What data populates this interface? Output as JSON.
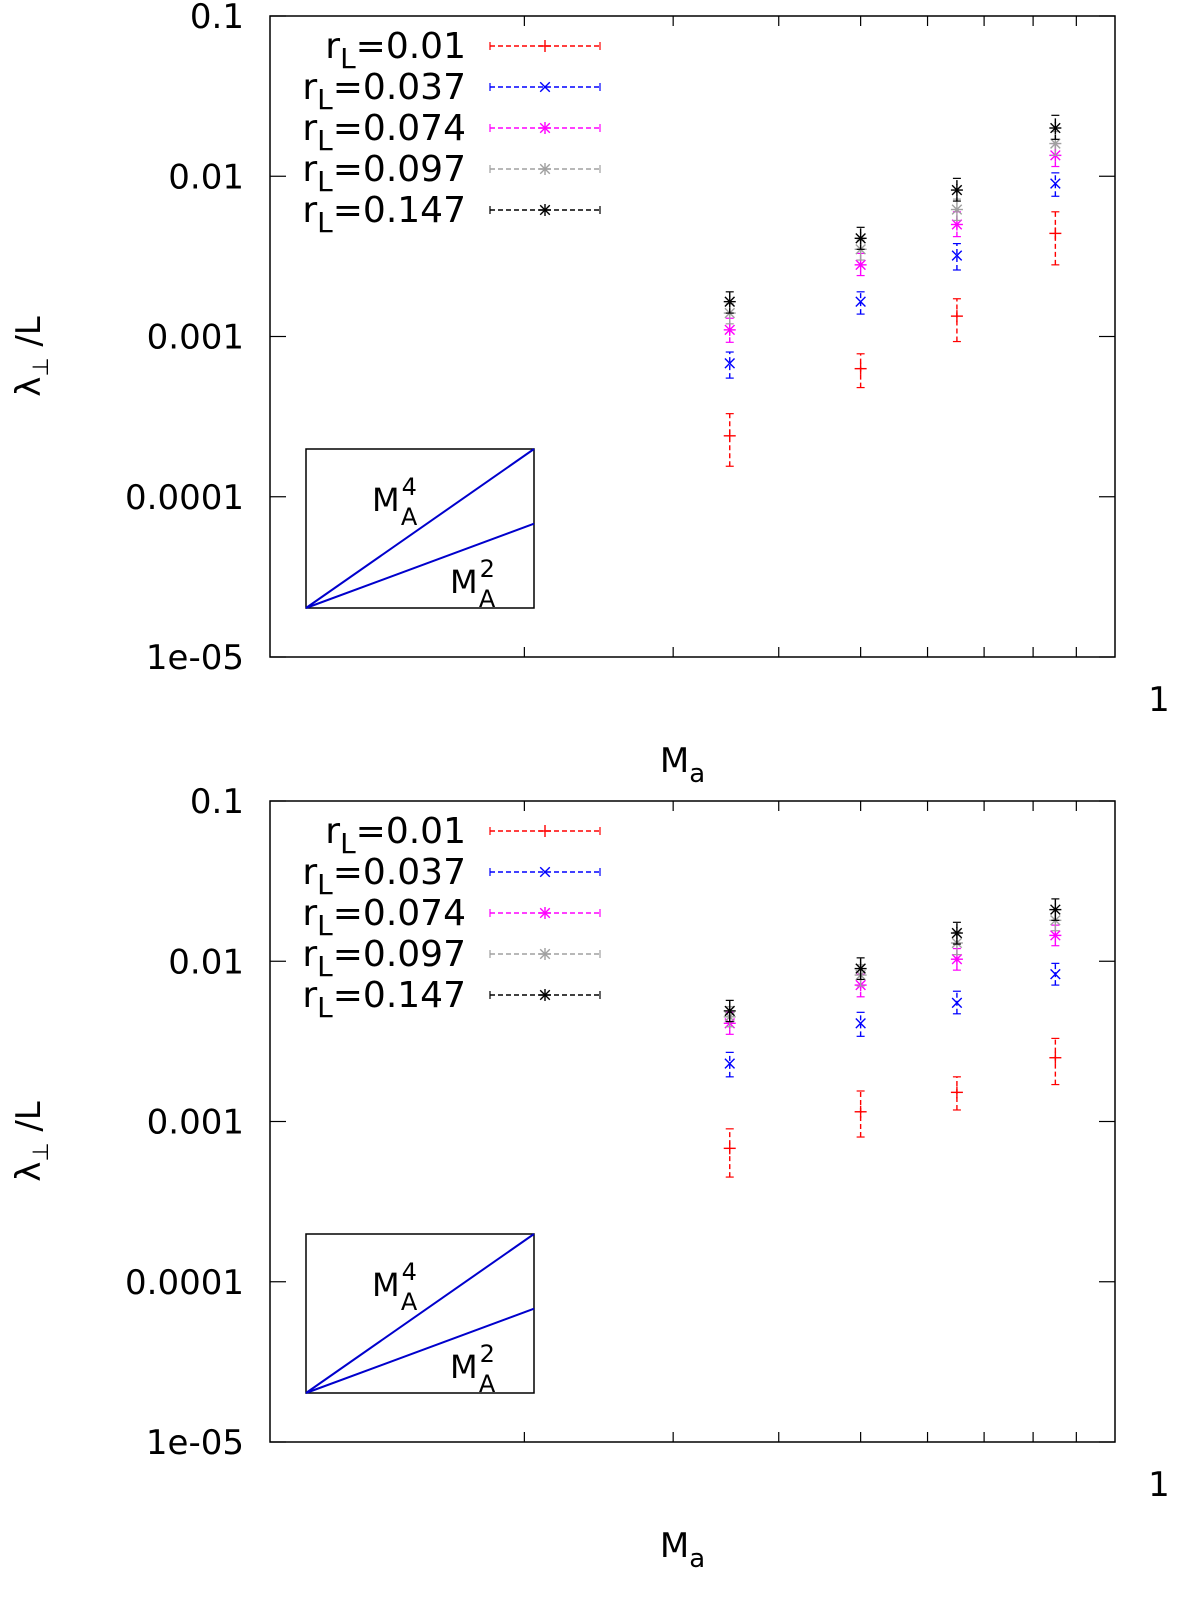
{
  "chart_data": [
    {
      "type": "scatter",
      "scale": "log-log",
      "xlabel": "M",
      "xlabel_sub": "a",
      "ylabel": "λ",
      "ylabel_sub": "⊥",
      "ylabel_suffix": "/L",
      "xlim": [
        0.1,
        1
      ],
      "ylim": [
        1e-05,
        0.1
      ],
      "x_tick_labels": [
        {
          "value": 1,
          "label": "1"
        }
      ],
      "y_tick_labels": [
        {
          "value": 0.1,
          "label": "0.1"
        },
        {
          "value": 0.01,
          "label": "0.01"
        },
        {
          "value": 0.001,
          "label": "0.001"
        },
        {
          "value": 0.0001,
          "label": "0.0001"
        },
        {
          "value": 1e-05,
          "label": "1e-05"
        }
      ],
      "inset": {
        "curves": [
          {
            "label": "M",
            "sub": "A",
            "sup": "4",
            "slope": 4
          },
          {
            "label": "M",
            "sub": "A",
            "sup": "2",
            "slope": 2
          }
        ]
      },
      "series": [
        {
          "name": "r",
          "name_sub": "L",
          "name_suffix": "=0.01",
          "color": "#ff0000",
          "marker": "plus",
          "x": [
            0.35,
            0.5,
            0.65,
            0.85
          ],
          "y": [
            0.00024,
            0.00063,
            0.00134,
            0.0044
          ],
          "err_low": [
            0.000155,
            0.00048,
            0.00093,
            0.0028
          ],
          "err_high": [
            0.00033,
            0.00078,
            0.00172,
            0.006
          ]
        },
        {
          "name": "r",
          "name_sub": "L",
          "name_suffix": "=0.037",
          "color": "#0000ff",
          "marker": "cross",
          "x": [
            0.35,
            0.5,
            0.65,
            0.85
          ],
          "y": [
            0.00068,
            0.00165,
            0.0032,
            0.009
          ],
          "err_low": [
            0.00055,
            0.00138,
            0.0026,
            0.0075
          ],
          "err_high": [
            0.0008,
            0.0019,
            0.0038,
            0.0105
          ]
        },
        {
          "name": "r",
          "name_sub": "L",
          "name_suffix": "=0.074",
          "color": "#ff00ff",
          "marker": "asterisk",
          "x": [
            0.35,
            0.5,
            0.65,
            0.85
          ],
          "y": [
            0.0011,
            0.0028,
            0.005,
            0.0135
          ],
          "err_low": [
            0.00092,
            0.0024,
            0.0042,
            0.0115
          ],
          "err_high": [
            0.0013,
            0.0033,
            0.006,
            0.016
          ]
        },
        {
          "name": "r",
          "name_sub": "L",
          "name_suffix": "=0.097",
          "color": "#a0a0a0",
          "marker": "asterisk",
          "x": [
            0.35,
            0.5,
            0.65,
            0.85
          ],
          "y": [
            0.0014,
            0.0035,
            0.0062,
            0.016
          ],
          "err_low": [
            0.0012,
            0.003,
            0.0053,
            0.0135
          ],
          "err_high": [
            0.0016,
            0.004,
            0.0072,
            0.019
          ]
        },
        {
          "name": "r",
          "name_sub": "L",
          "name_suffix": "=0.147",
          "color": "#000000",
          "marker": "asterisk",
          "x": [
            0.35,
            0.5,
            0.65,
            0.85
          ],
          "y": [
            0.00165,
            0.0041,
            0.0082,
            0.02
          ],
          "err_low": [
            0.0014,
            0.0035,
            0.007,
            0.017
          ],
          "err_high": [
            0.0019,
            0.0048,
            0.0097,
            0.024
          ]
        }
      ]
    },
    {
      "type": "scatter",
      "scale": "log-log",
      "xlabel": "M",
      "xlabel_sub": "a",
      "ylabel": "λ",
      "ylabel_sub": "⊥",
      "ylabel_suffix": "/L",
      "xlim": [
        0.1,
        1
      ],
      "ylim": [
        1e-05,
        0.1
      ],
      "x_tick_labels": [
        {
          "value": 1,
          "label": "1"
        }
      ],
      "y_tick_labels": [
        {
          "value": 0.1,
          "label": "0.1"
        },
        {
          "value": 0.01,
          "label": "0.01"
        },
        {
          "value": 0.001,
          "label": "0.001"
        },
        {
          "value": 0.0001,
          "label": "0.0001"
        },
        {
          "value": 1e-05,
          "label": "1e-05"
        }
      ],
      "inset": {
        "curves": [
          {
            "label": "M",
            "sub": "A",
            "sup": "4",
            "slope": 4
          },
          {
            "label": "M",
            "sub": "A",
            "sup": "2",
            "slope": 2
          }
        ]
      },
      "series": [
        {
          "name": "r",
          "name_sub": "L",
          "name_suffix": "=0.01",
          "color": "#ff0000",
          "marker": "plus",
          "x": [
            0.35,
            0.5,
            0.65,
            0.85
          ],
          "y": [
            0.00068,
            0.00115,
            0.00152,
            0.0025
          ],
          "err_low": [
            0.00045,
            0.0008,
            0.00118,
            0.0017
          ],
          "err_high": [
            0.0009,
            0.00155,
            0.0019,
            0.0033
          ]
        },
        {
          "name": "r",
          "name_sub": "L",
          "name_suffix": "=0.037",
          "color": "#0000ff",
          "marker": "cross",
          "x": [
            0.35,
            0.5,
            0.65,
            0.85
          ],
          "y": [
            0.0023,
            0.0041,
            0.0055,
            0.0083
          ],
          "err_low": [
            0.0019,
            0.0034,
            0.0047,
            0.0071
          ],
          "err_high": [
            0.0027,
            0.0048,
            0.0065,
            0.0097
          ]
        },
        {
          "name": "r",
          "name_sub": "L",
          "name_suffix": "=0.074",
          "color": "#ff00ff",
          "marker": "asterisk",
          "x": [
            0.35,
            0.5,
            0.65,
            0.85
          ],
          "y": [
            0.0041,
            0.0071,
            0.0103,
            0.0145
          ],
          "err_low": [
            0.0035,
            0.006,
            0.0088,
            0.0125
          ],
          "err_high": [
            0.0048,
            0.0083,
            0.012,
            0.0168
          ]
        },
        {
          "name": "r",
          "name_sub": "L",
          "name_suffix": "=0.097",
          "color": "#a0a0a0",
          "marker": "asterisk",
          "x": [
            0.35,
            0.5,
            0.65,
            0.85
          ],
          "y": [
            0.0045,
            0.0082,
            0.013,
            0.018
          ],
          "err_low": [
            0.0039,
            0.007,
            0.011,
            0.0155
          ],
          "err_high": [
            0.0052,
            0.0095,
            0.0152,
            0.021
          ]
        },
        {
          "name": "r",
          "name_sub": "L",
          "name_suffix": "=0.147",
          "color": "#000000",
          "marker": "asterisk",
          "x": [
            0.35,
            0.5,
            0.65,
            0.85
          ],
          "y": [
            0.0049,
            0.009,
            0.015,
            0.021
          ],
          "err_low": [
            0.0042,
            0.0077,
            0.0128,
            0.018
          ],
          "err_high": [
            0.0057,
            0.0105,
            0.0175,
            0.0245
          ]
        }
      ]
    }
  ]
}
